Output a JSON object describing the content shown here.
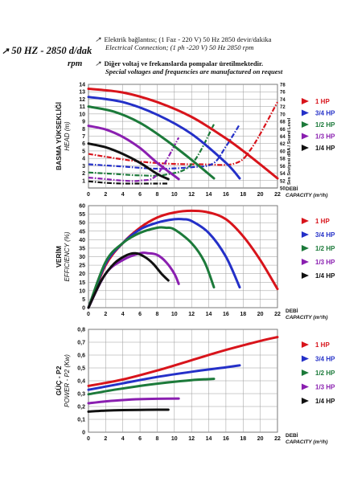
{
  "header": {
    "speed_label": "50 HZ - 2850 d/dak",
    "rpm_label": "rpm",
    "line1": "Elektrik bağlantısı; (1 Faz - 220 V) 50 Hz 2850 devir/dakika",
    "line2": "Electrical Connection; (1 ph -220 V)  50 Hz 2850 rpm",
    "line3": "Diğer voltaj ve frekanslarda pompalar üretilmektedir.",
    "line4": "Special voltages and frequencies  are manufactured on request"
  },
  "colors": {
    "1 HP": "#d8141b",
    "3/4 HP": "#2430c8",
    "1/2 HP": "#1c7a3a",
    "1/3 HP": "#8a1fb0",
    "1/4 HP": "#111111"
  },
  "legend": [
    "1 HP",
    "3/4 HP",
    "1/2 HP",
    "1/3 HP",
    "1/4 HP"
  ],
  "chart_data": [
    {
      "type": "line",
      "title": "",
      "ylabel": "BASMA YÜKSEKLİĞİ",
      "ylabel_en": "HEAD (m)",
      "xlabel": "DEBİ",
      "xlabel_en": "CAPACITY (m³/h)",
      "xlim": [
        0,
        22
      ],
      "ylim": [
        0,
        14
      ],
      "x_ticks": [
        0,
        2,
        4,
        6,
        8,
        10,
        12,
        14,
        16,
        18,
        20,
        22
      ],
      "y_ticks": [
        1,
        2,
        3,
        4,
        5,
        6,
        7,
        8,
        9,
        10,
        11,
        12,
        13,
        14
      ],
      "right_axis_label": "Ses Seviyesi dBA / Sound Level",
      "right_ticks": [
        50,
        52,
        54,
        56,
        58,
        60,
        62,
        64,
        66,
        68,
        70,
        72,
        74,
        76,
        78
      ],
      "grid": true,
      "series": [
        {
          "name": "1 HP",
          "x": [
            0,
            4,
            8,
            12,
            16,
            19,
            22
          ],
          "y": [
            13.4,
            12.9,
            11.6,
            9.6,
            6.7,
            4.1,
            1.3
          ]
        },
        {
          "name": "3/4 HP",
          "x": [
            0,
            4,
            8,
            12,
            16,
            17.6
          ],
          "y": [
            12.3,
            11.6,
            9.9,
            7.3,
            3.4,
            1.3
          ]
        },
        {
          "name": "1/2 HP",
          "x": [
            0,
            3,
            6,
            9,
            12,
            14.6
          ],
          "y": [
            11.0,
            10.3,
            8.8,
            6.5,
            3.8,
            1.3
          ]
        },
        {
          "name": "1/3 HP",
          "x": [
            0,
            2,
            4,
            6,
            8,
            10.5
          ],
          "y": [
            8.4,
            7.9,
            6.9,
            5.4,
            3.4,
            1.2
          ]
        },
        {
          "name": "1/4 HP",
          "x": [
            0,
            2,
            4,
            6,
            8,
            9.3
          ],
          "y": [
            6.0,
            5.5,
            4.6,
            3.4,
            1.9,
            1.2
          ]
        }
      ],
      "sound_series": [
        {
          "name": "1 HP",
          "x": [
            0,
            5,
            9,
            13,
            17,
            19,
            22
          ],
          "y": [
            4.6,
            3.7,
            3.3,
            3.2,
            3.3,
            5.4,
            11.6
          ]
        },
        {
          "name": "3/4 HP",
          "x": [
            0,
            4,
            8,
            12,
            14.5,
            16,
            17.6
          ],
          "y": [
            3.2,
            2.9,
            2.6,
            2.8,
            3.3,
            5.6,
            8.6
          ]
        },
        {
          "name": "1/2 HP",
          "x": [
            0,
            3,
            6,
            9,
            12,
            14.6
          ],
          "y": [
            2.1,
            1.9,
            1.7,
            1.8,
            3.2,
            8.6
          ]
        },
        {
          "name": "1/3 HP",
          "x": [
            0,
            2,
            4,
            6,
            8,
            10.5
          ],
          "y": [
            1.4,
            1.2,
            1.0,
            1.0,
            1.8,
            6.8
          ]
        },
        {
          "name": "1/4 HP",
          "x": [
            0,
            2,
            4,
            6,
            8,
            9.3
          ],
          "y": [
            0.9,
            0.7,
            0.6,
            0.6,
            0.6,
            0.6
          ]
        }
      ]
    },
    {
      "type": "line",
      "title": "",
      "ylabel": "VERİM",
      "ylabel_en": "EFFICIENCY (%)",
      "xlabel": "DEBİ",
      "xlabel_en": "CAPACITY (m³/h)",
      "xlim": [
        0,
        22
      ],
      "ylim": [
        0,
        60
      ],
      "x_ticks": [
        0,
        2,
        4,
        6,
        8,
        10,
        12,
        14,
        16,
        18,
        20,
        22
      ],
      "y_ticks": [
        0,
        5,
        10,
        15,
        20,
        25,
        30,
        35,
        40,
        45,
        50,
        55,
        60
      ],
      "grid": true,
      "series": [
        {
          "name": "1 HP",
          "x": [
            0,
            2,
            4,
            6,
            8,
            10,
            12,
            14,
            16,
            18,
            20,
            22
          ],
          "y": [
            0,
            25,
            38,
            47,
            53,
            56,
            57,
            56,
            52,
            42,
            28,
            11
          ]
        },
        {
          "name": "3/4 HP",
          "x": [
            0,
            2,
            4,
            6,
            8,
            10,
            11,
            12,
            14,
            16,
            17.6
          ],
          "y": [
            0,
            26,
            38,
            46,
            50,
            52,
            52,
            51,
            44,
            30,
            12
          ]
        },
        {
          "name": "1/2 HP",
          "x": [
            0,
            2,
            4,
            6,
            8,
            9,
            10,
            12,
            13.5,
            14.6
          ],
          "y": [
            0,
            27,
            38,
            44,
            47,
            47,
            46,
            38,
            27,
            12
          ]
        },
        {
          "name": "1/3 HP",
          "x": [
            0,
            2,
            4,
            6,
            7,
            8,
            9,
            10,
            10.5
          ],
          "y": [
            0,
            20,
            28,
            32,
            32,
            31,
            27,
            20,
            14
          ]
        },
        {
          "name": "1/4 HP",
          "x": [
            0,
            1.5,
            3,
            4.5,
            5.5,
            6.5,
            7.5,
            8.5,
            9.3
          ],
          "y": [
            0,
            16,
            26,
            31,
            32,
            30,
            26,
            20,
            16
          ]
        }
      ]
    },
    {
      "type": "line",
      "title": "",
      "ylabel": "GÜÇ - P2",
      "ylabel_en": "POWER - P2 (Kw)",
      "xlabel": "DEBİ",
      "xlabel_en": "CAPACITY (m³/h)",
      "xlim": [
        0,
        22
      ],
      "ylim": [
        0,
        0.8
      ],
      "x_ticks": [
        0,
        2,
        4,
        6,
        8,
        10,
        12,
        14,
        16,
        18,
        20,
        22
      ],
      "y_ticks": [
        "0",
        "0,1",
        "0,2",
        "0,3",
        "0,4",
        "0,5",
        "0,6",
        "0,7",
        "0,8"
      ],
      "grid": true,
      "series": [
        {
          "name": "1 HP",
          "x": [
            0,
            4,
            8,
            12,
            16,
            20,
            22
          ],
          "y": [
            0.36,
            0.41,
            0.48,
            0.56,
            0.64,
            0.71,
            0.74
          ]
        },
        {
          "name": "3/4 HP",
          "x": [
            0,
            4,
            8,
            12,
            16,
            17.6
          ],
          "y": [
            0.33,
            0.38,
            0.43,
            0.47,
            0.505,
            0.52
          ]
        },
        {
          "name": "1/2 HP",
          "x": [
            0,
            3,
            6,
            9,
            12,
            14.6
          ],
          "y": [
            0.295,
            0.33,
            0.36,
            0.385,
            0.405,
            0.415
          ]
        },
        {
          "name": "1/3 HP",
          "x": [
            0,
            2,
            4,
            6,
            8,
            10.5
          ],
          "y": [
            0.225,
            0.24,
            0.25,
            0.257,
            0.26,
            0.262
          ]
        },
        {
          "name": "1/4 HP",
          "x": [
            0,
            2,
            4,
            6,
            8,
            9.3
          ],
          "y": [
            0.16,
            0.168,
            0.172,
            0.174,
            0.175,
            0.175
          ]
        }
      ]
    }
  ]
}
